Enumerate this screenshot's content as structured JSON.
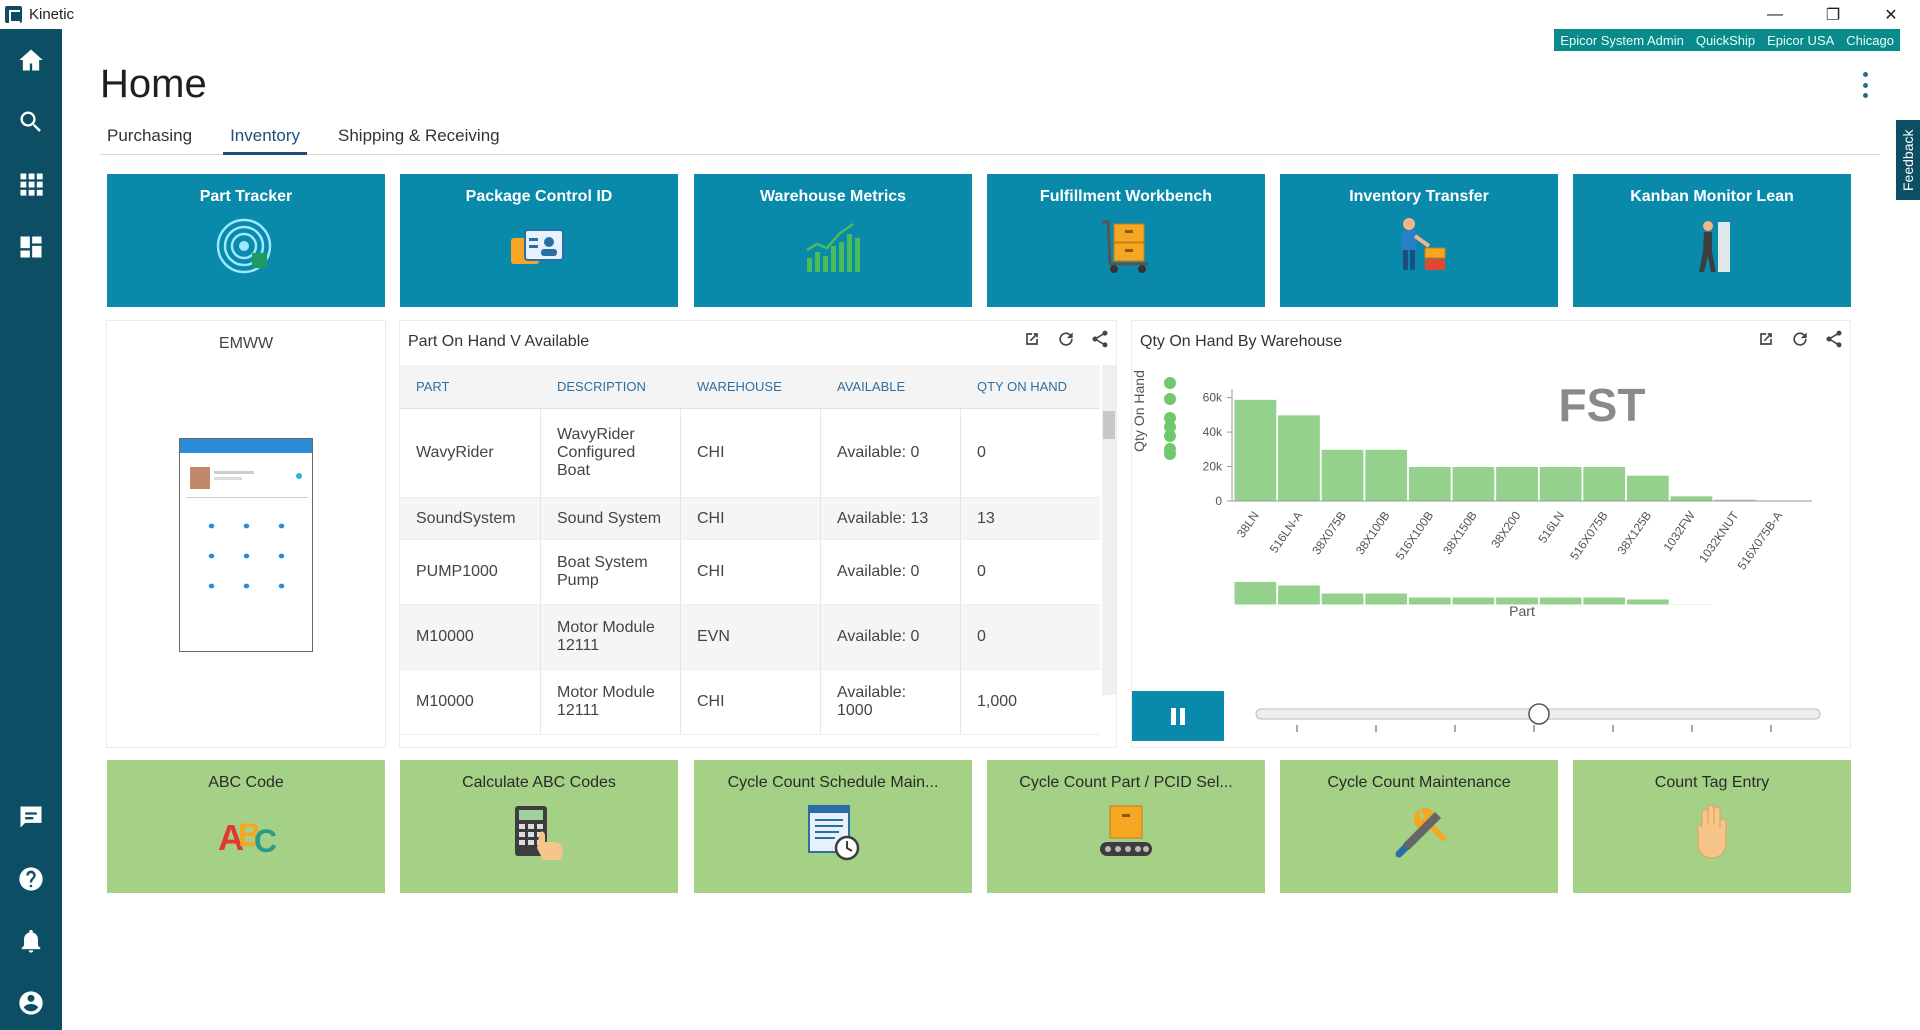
{
  "app": {
    "title": "Kinetic"
  },
  "window": {
    "minimize": "—",
    "restore": "❐",
    "close": "✕"
  },
  "userbar": [
    "Epicor System Admin",
    "QuickShip",
    "Epicor USA",
    "Chicago"
  ],
  "page": {
    "title": "Home"
  },
  "tabs": [
    {
      "label": "Purchasing",
      "active": false
    },
    {
      "label": "Inventory",
      "active": true
    },
    {
      "label": "Shipping & Receiving",
      "active": false
    }
  ],
  "feedback": "Feedback",
  "top_tiles": [
    {
      "label": "Part Tracker",
      "icon": "target-icon"
    },
    {
      "label": "Package Control ID",
      "icon": "id-card-icon"
    },
    {
      "label": "Warehouse Metrics",
      "icon": "bar-growth-icon"
    },
    {
      "label": "Fulfillment Workbench",
      "icon": "cart-icon"
    },
    {
      "label": "Inventory Transfer",
      "icon": "worker-box-icon"
    },
    {
      "label": "Kanban Monitor Lean",
      "icon": "person-door-icon"
    }
  ],
  "bottom_tiles": [
    {
      "label": "ABC Code",
      "icon": "abc-icon"
    },
    {
      "label": "Calculate ABC Codes",
      "icon": "calculator-icon"
    },
    {
      "label": "Cycle Count Schedule Main...",
      "icon": "schedule-icon"
    },
    {
      "label": "Cycle Count Part / PCID Sel...",
      "icon": "conveyor-icon"
    },
    {
      "label": "Cycle Count Maintenance",
      "icon": "tools-icon"
    },
    {
      "label": "Count Tag Entry",
      "icon": "hand-icon"
    }
  ],
  "emww": {
    "title": "EMWW"
  },
  "table_card": {
    "title": "Part On Hand V Available",
    "columns": [
      "PART",
      "DESCRIPTION",
      "WAREHOUSE",
      "AVAILABLE",
      "QTY ON HAND"
    ],
    "rows": [
      [
        "WavyRider",
        "WavyRider Configured Boat",
        "CHI",
        "Available: 0",
        "0"
      ],
      [
        "SoundSystem",
        "Sound System",
        "CHI",
        "Available: 13",
        "13"
      ],
      [
        "PUMP1000",
        "Boat System Pump",
        "CHI",
        "Available: 0",
        "0"
      ],
      [
        "M10000",
        "Motor Module 12111",
        "EVN",
        "Available: 0",
        "0"
      ],
      [
        "M10000",
        "Motor Module 12111",
        "CHI",
        "Available: 1000",
        "1,000"
      ]
    ]
  },
  "chart_card": {
    "title": "Qty On Hand By Warehouse"
  },
  "chart_data": {
    "type": "bar",
    "title": "",
    "watermark": "FST",
    "xlabel": "Part",
    "ylabel": "Qty On Hand",
    "yticks": [
      "0",
      "20k",
      "40k",
      "60k"
    ],
    "ylim": [
      0,
      65000
    ],
    "categories": [
      "38LN",
      "516LN-A",
      "38X075B",
      "38X100B",
      "516X100B",
      "38X150B",
      "38X200",
      "516LN",
      "516X075B",
      "38X125B",
      "1032FW",
      "1032KNUT",
      "516X075B-A"
    ],
    "values": [
      59000,
      50000,
      30000,
      30000,
      20000,
      20000,
      20000,
      20000,
      20000,
      15000,
      3000,
      1000,
      500
    ],
    "bar_color": "#93d18c",
    "grid": false
  }
}
